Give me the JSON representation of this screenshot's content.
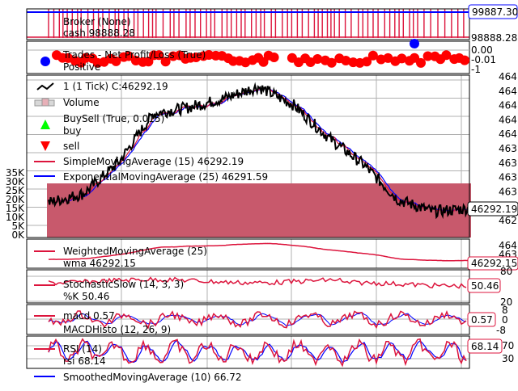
{
  "colors": {
    "crimson": "#dc143c",
    "blue": "#0000ff",
    "black": "#000000",
    "volume": "#c8596c",
    "buy": "#00ff00",
    "sell": "#ff0000",
    "grid": "#b0b0b0"
  },
  "chart_data": [
    {
      "type": "line",
      "panel": "broker",
      "legend": [
        "Broker (None)",
        "cash 98888.28"
      ],
      "badges": [
        "99887.30",
        "98888.28"
      ],
      "value_labels": [
        "99887.30",
        "98888.28"
      ]
    },
    {
      "type": "scatter",
      "panel": "trades",
      "legend": [
        "Trades - Net Profit/Loss (True)",
        "Positive"
      ],
      "tick_labels": [
        "0.00",
        "-0.01",
        "-1"
      ],
      "positive_points": 60,
      "negative_points": 2
    },
    {
      "type": "line",
      "panel": "price",
      "legend": [
        "1 (1 Tick) C:46292.19",
        "Volume",
        "BuySell (True, 0.015)",
        "buy",
        "sell",
        "SimpleMovingAverage (15) 46292.19",
        "ExponentialMovingAverage (25) 46291.59"
      ],
      "series": [
        {
          "name": "1 (1 Tick)",
          "close": 46292.19
        },
        {
          "name": "SimpleMovingAverage (15)",
          "last": 46292.19
        },
        {
          "name": "ExponentialMovingAverage (25)",
          "last": 46291.59
        }
      ],
      "right_tick_labels": [
        "464",
        "464",
        "464",
        "464",
        "464",
        "463",
        "463",
        "463",
        "463",
        "462",
        "462"
      ],
      "volume_tick_labels": [
        "35K",
        "30K",
        "25K",
        "20K",
        "15K",
        "10K",
        "5K",
        "0K"
      ],
      "volume_level": 31000,
      "volume_ylim": [
        0,
        35000
      ],
      "last_value_badge": "46292.19",
      "profile": [
        0.18,
        0.24,
        0.45,
        0.78,
        0.82,
        0.88,
        0.96,
        0.84,
        0.62,
        0.44,
        0.2,
        0.12,
        0.14
      ]
    },
    {
      "type": "line",
      "panel": "wma",
      "legend": [
        "WeightedMovingAverage (25)",
        "wma 46292.15"
      ],
      "right_tick_labels": [
        "464",
        "463"
      ],
      "last_value_badge": "46292.15"
    },
    {
      "type": "line",
      "panel": "stochastic",
      "legend": [
        "StochasticSlow (14, 3, 3)",
        "%K 50.46"
      ],
      "right_tick_labels": [
        "80",
        "20"
      ],
      "last_value_badge": "50.46"
    },
    {
      "type": "line",
      "panel": "macd",
      "legend": [
        "macd 0.57",
        "MACDHisto (12, 26, 9)"
      ],
      "right_tick_labels": [
        "8",
        "0",
        "-8"
      ],
      "last_value_badge": "0.57"
    },
    {
      "type": "line",
      "panel": "rsi",
      "legend": [
        "RSI (14)",
        "rsi 68.14",
        "SmoothedMovingAverage (10) 66.72"
      ],
      "right_tick_labels": [
        "70",
        "30"
      ],
      "last_value_badge": "68.14"
    }
  ]
}
